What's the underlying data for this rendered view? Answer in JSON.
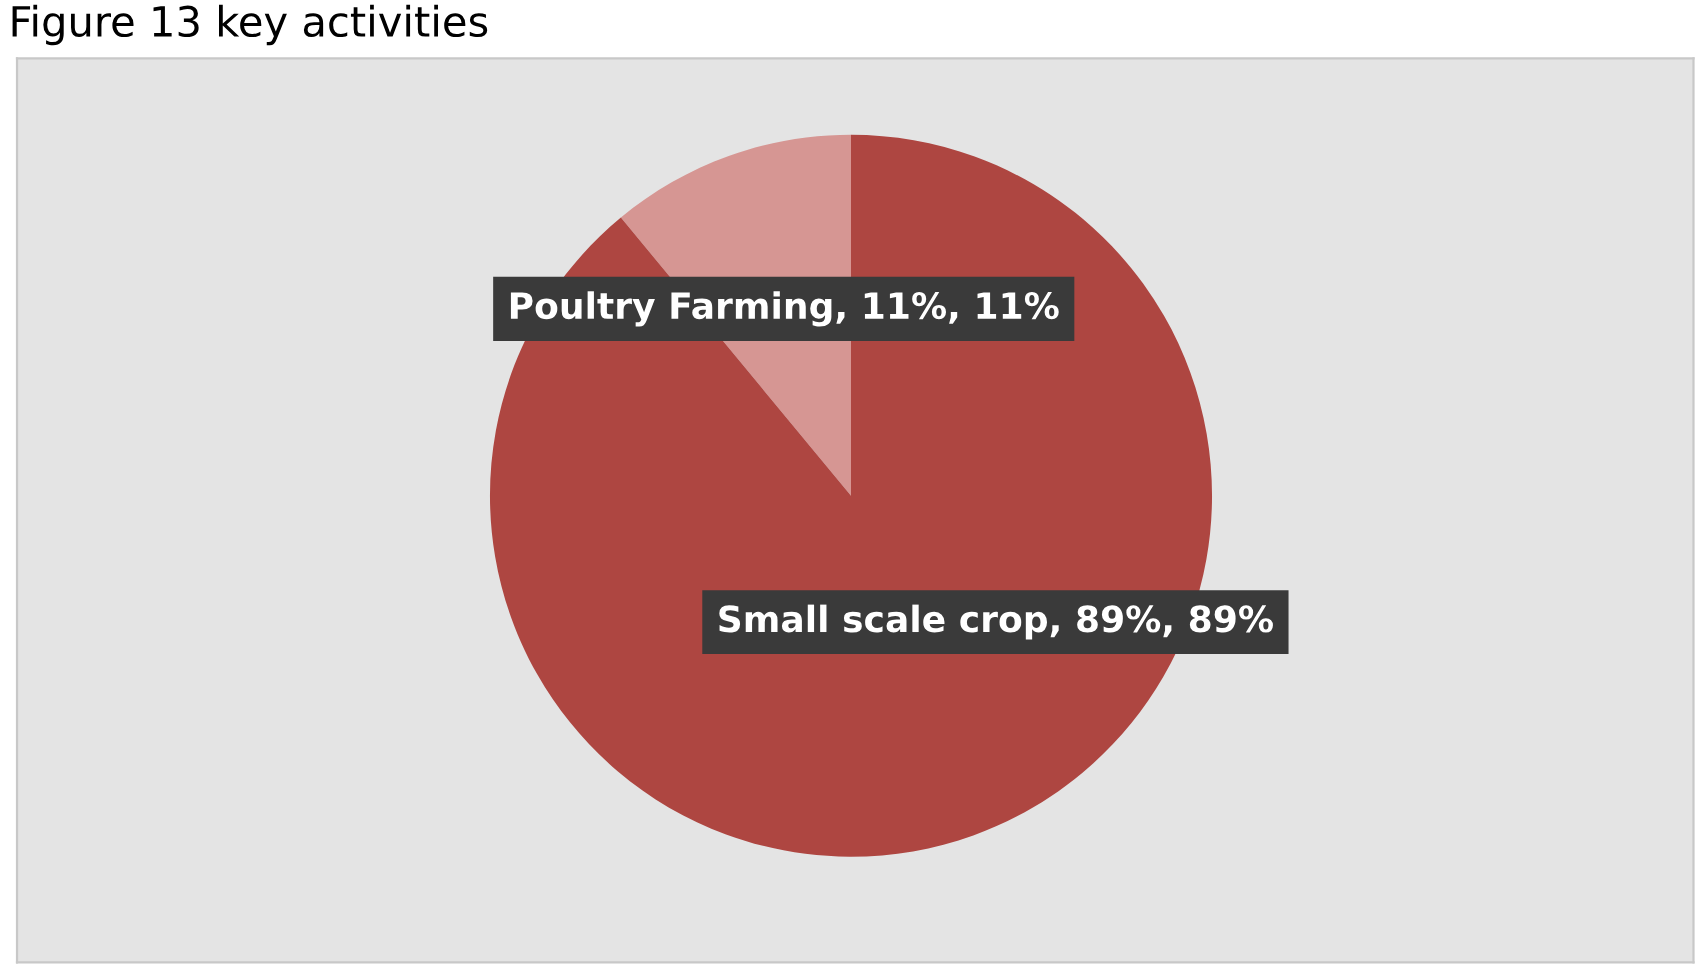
{
  "chart_data": {
    "type": "pie",
    "title": "Figure 13 key activities",
    "categories": [
      "Poultry Farming",
      "Small scale crop"
    ],
    "values": [
      11,
      89
    ],
    "colors": [
      "#d69693",
      "#ae4641"
    ],
    "value_labels": [
      ", 11%, 11%",
      ", 89%, 89%"
    ],
    "legend": false
  }
}
